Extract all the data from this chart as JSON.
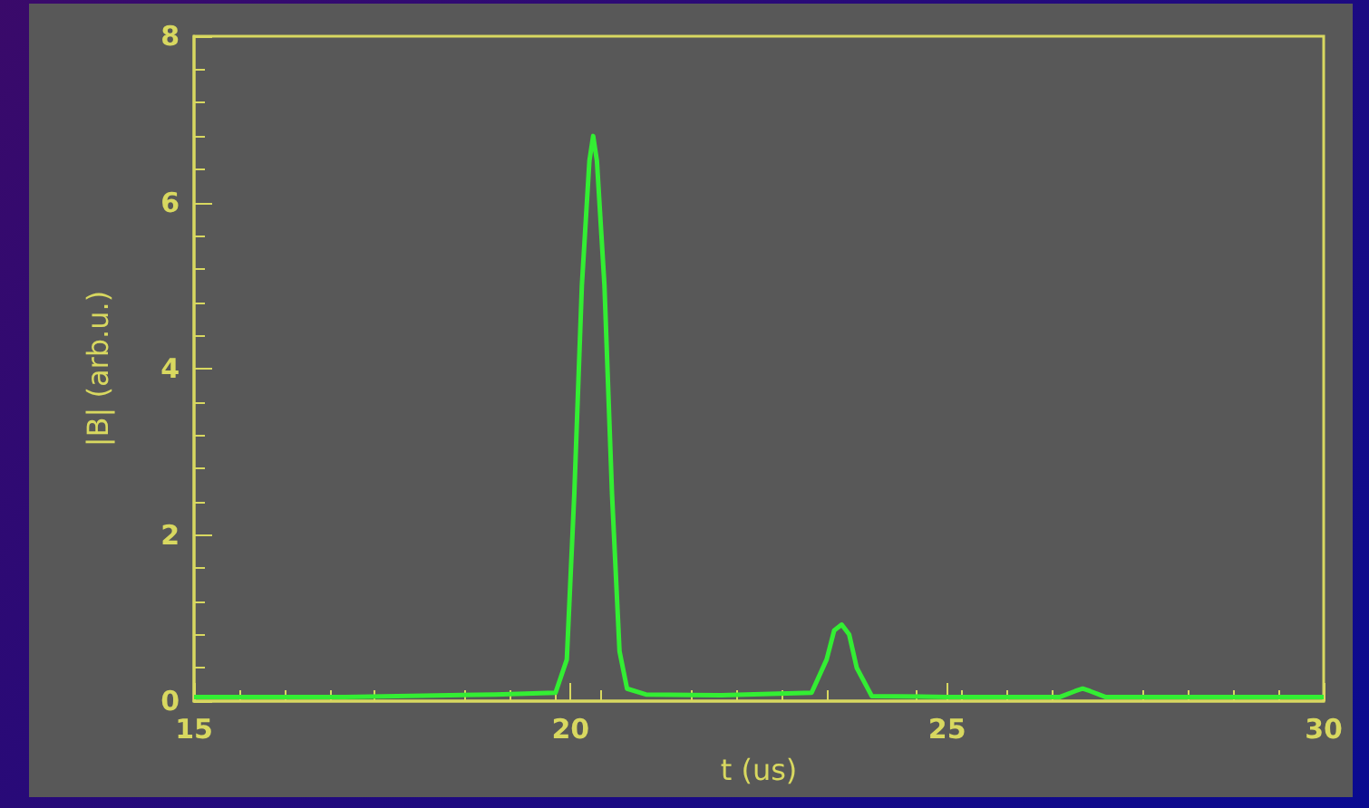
{
  "chart_data": {
    "type": "line",
    "xlabel": "t (us)",
    "ylabel": "|B| (arb.u.)",
    "x": [
      15,
      17,
      19,
      19.8,
      19.95,
      20.05,
      20.15,
      20.25,
      20.3,
      20.35,
      20.45,
      20.55,
      20.65,
      20.75,
      21,
      22,
      23.2,
      23.4,
      23.5,
      23.6,
      23.7,
      23.8,
      24,
      25,
      26.5,
      26.7,
      26.8,
      26.9,
      27.1,
      28,
      30
    ],
    "series": [
      {
        "color": "#33ee33",
        "values": [
          0.05,
          0.05,
          0.08,
          0.1,
          0.5,
          2.5,
          5,
          6.5,
          6.8,
          6.5,
          5,
          2.5,
          0.6,
          0.15,
          0.08,
          0.07,
          0.1,
          0.5,
          0.85,
          0.92,
          0.8,
          0.4,
          0.06,
          0.05,
          0.05,
          0.12,
          0.15,
          0.12,
          0.05,
          0.05,
          0.05
        ]
      }
    ],
    "xlim": [
      15,
      30
    ],
    "xticks": [
      15,
      20,
      25,
      30
    ],
    "ylim": [
      0,
      8
    ],
    "yticks": [
      0,
      2,
      4,
      6,
      8
    ]
  }
}
